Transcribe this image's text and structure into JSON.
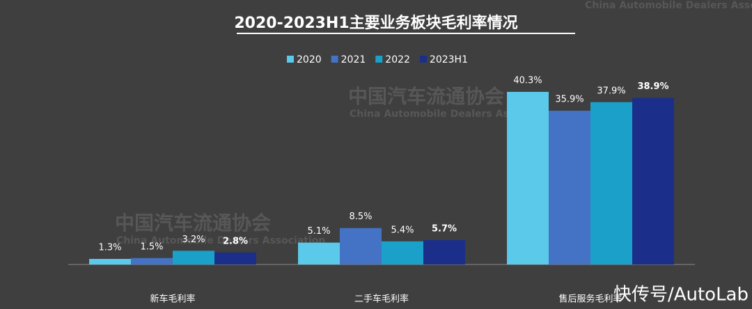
{
  "chart_data": {
    "type": "bar",
    "title": "2020-2023H1主要业务板块毛利率情况",
    "categories": [
      "新车毛利率",
      "二手车毛利率",
      "售后服务毛利率"
    ],
    "series": [
      {
        "name": "2020",
        "color": "#5bc9ea",
        "values": [
          1.3,
          5.1,
          40.3
        ],
        "value_labels": [
          "1.3%",
          "5.1%",
          "40.3%"
        ]
      },
      {
        "name": "2021",
        "color": "#4472c4",
        "values": [
          1.5,
          8.5,
          35.9
        ],
        "value_labels": [
          "1.5%",
          "8.5%",
          "35.9%"
        ]
      },
      {
        "name": "2022",
        "color": "#1ba1c9",
        "values": [
          3.2,
          5.4,
          37.9
        ],
        "value_labels": [
          "3.2%",
          "5.4%",
          "37.9%"
        ]
      },
      {
        "name": "2023H1",
        "color": "#1b2f8a",
        "values": [
          2.8,
          5.7,
          38.9
        ],
        "value_labels": [
          "2.8%",
          "5.7%",
          "38.9%"
        ]
      }
    ],
    "watermark": {
      "cn": "中国汽车流通协会",
      "en": "China Automobile Dealers Association",
      "source": "快传号/AutoLab"
    }
  }
}
